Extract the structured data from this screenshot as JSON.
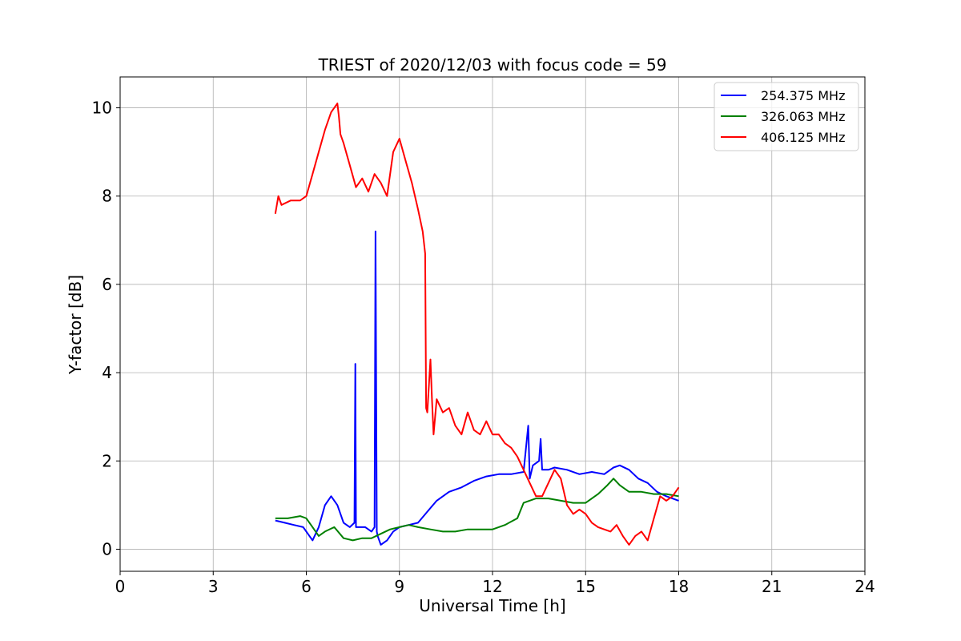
{
  "chart_data": {
    "type": "line",
    "title": "TRIEST of 2020/12/03 with focus code = 59",
    "xlabel": "Universal Time [h]",
    "ylabel": "Y-factor [dB]",
    "xlim": [
      0,
      24
    ],
    "ylim": [
      -0.5,
      10.7
    ],
    "xticks": [
      0,
      3,
      6,
      9,
      12,
      15,
      18,
      21,
      24
    ],
    "yticks": [
      0,
      2,
      4,
      6,
      8,
      10
    ],
    "grid": true,
    "legend_position": "top-right",
    "series": [
      {
        "name": "254.375 MHz",
        "color": "#0000ff",
        "x": [
          5.0,
          5.3,
          5.6,
          5.9,
          6.0,
          6.2,
          6.4,
          6.6,
          6.8,
          7.0,
          7.2,
          7.4,
          7.55,
          7.58,
          7.6,
          7.7,
          7.9,
          8.1,
          8.2,
          8.23,
          8.27,
          8.3,
          8.4,
          8.6,
          8.8,
          9.0,
          9.3,
          9.6,
          9.9,
          10.2,
          10.6,
          11.0,
          11.4,
          11.8,
          12.2,
          12.6,
          13.0,
          13.15,
          13.2,
          13.3,
          13.5,
          13.55,
          13.6,
          13.8,
          14.0,
          14.4,
          14.8,
          15.2,
          15.6,
          15.9,
          16.1,
          16.4,
          16.7,
          17.0,
          17.3,
          17.6,
          18.0
        ],
        "y": [
          0.65,
          0.6,
          0.55,
          0.5,
          0.4,
          0.2,
          0.5,
          1.0,
          1.2,
          1.0,
          0.6,
          0.5,
          0.6,
          4.2,
          0.5,
          0.5,
          0.5,
          0.4,
          0.5,
          7.2,
          0.4,
          0.3,
          0.1,
          0.2,
          0.4,
          0.5,
          0.55,
          0.6,
          0.85,
          1.1,
          1.3,
          1.4,
          1.55,
          1.65,
          1.7,
          1.7,
          1.75,
          2.8,
          1.6,
          1.9,
          2.0,
          2.5,
          1.8,
          1.8,
          1.85,
          1.8,
          1.7,
          1.75,
          1.7,
          1.85,
          1.9,
          1.8,
          1.6,
          1.5,
          1.3,
          1.2,
          1.1
        ]
      },
      {
        "name": "326.063 MHz",
        "color": "#008000",
        "x": [
          5.0,
          5.4,
          5.8,
          6.0,
          6.2,
          6.4,
          6.6,
          6.9,
          7.2,
          7.5,
          7.8,
          8.1,
          8.4,
          8.7,
          9.0,
          9.3,
          9.6,
          10.0,
          10.4,
          10.8,
          11.2,
          11.6,
          12.0,
          12.4,
          12.8,
          13.0,
          13.4,
          13.8,
          14.2,
          14.6,
          15.0,
          15.4,
          15.7,
          15.9,
          16.1,
          16.4,
          16.8,
          17.2,
          17.6,
          18.0
        ],
        "y": [
          0.7,
          0.7,
          0.75,
          0.7,
          0.5,
          0.3,
          0.4,
          0.5,
          0.25,
          0.2,
          0.25,
          0.25,
          0.35,
          0.45,
          0.5,
          0.55,
          0.5,
          0.45,
          0.4,
          0.4,
          0.45,
          0.45,
          0.45,
          0.55,
          0.7,
          1.05,
          1.15,
          1.15,
          1.1,
          1.05,
          1.05,
          1.25,
          1.45,
          1.6,
          1.45,
          1.3,
          1.3,
          1.25,
          1.25,
          1.2
        ]
      },
      {
        "name": "406.125 MHz",
        "color": "#ff0000",
        "x": [
          5.0,
          5.1,
          5.2,
          5.5,
          5.8,
          6.0,
          6.2,
          6.4,
          6.6,
          6.8,
          7.0,
          7.05,
          7.1,
          7.2,
          7.4,
          7.6,
          7.8,
          8.0,
          8.2,
          8.4,
          8.6,
          8.8,
          9.0,
          9.2,
          9.4,
          9.6,
          9.75,
          9.83,
          9.86,
          9.9,
          10.0,
          10.05,
          10.1,
          10.2,
          10.4,
          10.6,
          10.8,
          11.0,
          11.2,
          11.4,
          11.6,
          11.8,
          12.0,
          12.2,
          12.4,
          12.6,
          12.8,
          13.0,
          13.2,
          13.4,
          13.6,
          13.8,
          14.0,
          14.2,
          14.4,
          14.6,
          14.8,
          15.0,
          15.2,
          15.4,
          15.6,
          15.8,
          16.0,
          16.2,
          16.4,
          16.6,
          16.8,
          17.0,
          17.2,
          17.4,
          17.6,
          17.8,
          18.0
        ],
        "y": [
          7.6,
          8.0,
          7.8,
          7.9,
          7.9,
          8.0,
          8.5,
          9.0,
          9.5,
          9.9,
          10.1,
          9.8,
          9.4,
          9.2,
          8.7,
          8.2,
          8.4,
          8.1,
          8.5,
          8.3,
          8.0,
          9.0,
          9.3,
          8.8,
          8.3,
          7.7,
          7.2,
          6.7,
          3.2,
          3.1,
          4.3,
          3.4,
          2.6,
          3.4,
          3.1,
          3.2,
          2.8,
          2.6,
          3.1,
          2.7,
          2.6,
          2.9,
          2.6,
          2.6,
          2.4,
          2.3,
          2.1,
          1.8,
          1.5,
          1.2,
          1.2,
          1.5,
          1.8,
          1.6,
          1.0,
          0.8,
          0.9,
          0.8,
          0.6,
          0.5,
          0.45,
          0.4,
          0.55,
          0.3,
          0.1,
          0.3,
          0.4,
          0.2,
          0.7,
          1.2,
          1.1,
          1.2,
          1.4
        ]
      }
    ]
  }
}
